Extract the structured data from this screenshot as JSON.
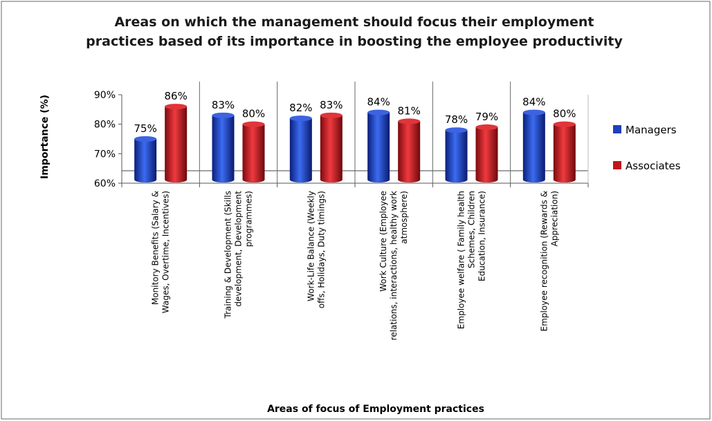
{
  "chart_data": {
    "type": "bar",
    "title": [
      "Areas on which the management should focus their employment",
      "practices based of its importance in boosting the employee productivity"
    ],
    "ylabel": "Importance (%)",
    "xlabel": "Areas of focus of Employment practices",
    "ylim": [
      60,
      90
    ],
    "yticks": [
      "60%",
      "70%",
      "80%",
      "90%"
    ],
    "grid": false,
    "legend_position": "right",
    "categories": [
      [
        "Monitory Benefits (Salary &",
        "Wages, Overtime, Incentives)"
      ],
      [
        "Training & Development (Skills",
        "development, Development",
        "programmes)"
      ],
      [
        "Work-Life Balance (Weekly",
        "offs, Holidays, Duty timings)"
      ],
      [
        "Work Culture (Employee",
        "relations, interactions, healthy work",
        "atmosphere)"
      ],
      [
        "Employee welfare ( Family health",
        "Schemes, Children",
        "Education, Insurance)"
      ],
      [
        "Employee recognition (Rewards &",
        "Appreciation)"
      ]
    ],
    "series": [
      {
        "name": "Managers",
        "color": "#1f3fbf",
        "values": [
          75,
          83,
          82,
          84,
          78,
          84
        ],
        "labels": [
          "75%",
          "83%",
          "82%",
          "84%",
          "78%",
          "84%"
        ]
      },
      {
        "name": "Associates",
        "color": "#c0151b",
        "values": [
          86,
          80,
          83,
          81,
          79,
          80
        ],
        "labels": [
          "86%",
          "80%",
          "83%",
          "81%",
          "79%",
          "80%"
        ]
      }
    ]
  }
}
